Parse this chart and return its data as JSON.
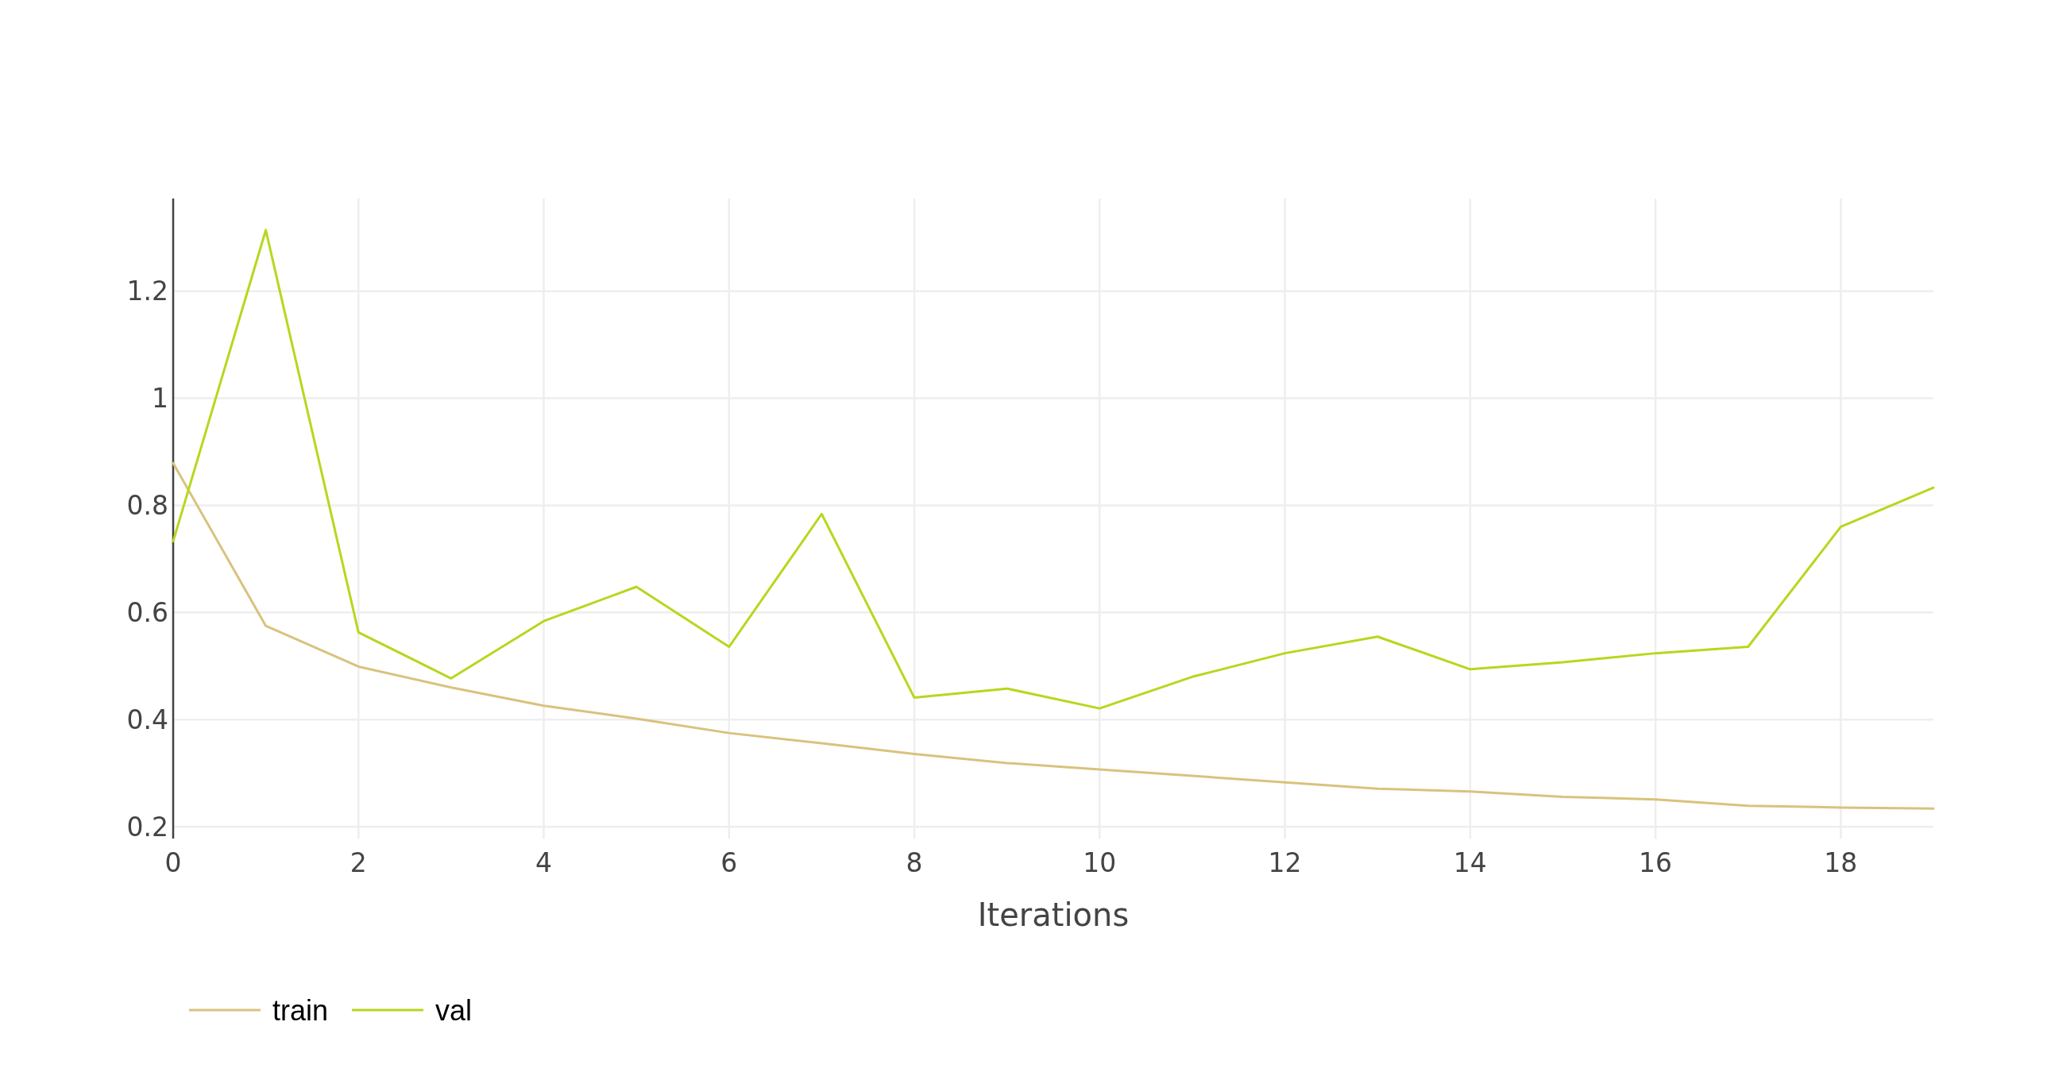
{
  "chart_data": {
    "type": "line",
    "xlabel": "Iterations",
    "x": [
      0,
      1,
      2,
      3,
      4,
      5,
      6,
      7,
      8,
      9,
      10,
      11,
      12,
      13,
      14,
      15,
      16,
      17,
      18,
      19
    ],
    "series": [
      {
        "name": "train",
        "color": "#d9c27e",
        "values": [
          0.879,
          0.575,
          0.499,
          0.46,
          0.426,
          0.402,
          0.375,
          0.356,
          0.336,
          0.319,
          0.307,
          0.295,
          0.283,
          0.271,
          0.266,
          0.256,
          0.251,
          0.239,
          0.236,
          0.234
        ]
      },
      {
        "name": "val",
        "color": "#b5d81e",
        "values": [
          0.733,
          1.314,
          0.563,
          0.477,
          0.584,
          0.648,
          0.536,
          0.784,
          0.441,
          0.458,
          0.421,
          0.48,
          0.524,
          0.555,
          0.494,
          0.507,
          0.524,
          0.536,
          0.76,
          0.833
        ]
      }
    ],
    "xlim": [
      0,
      19
    ],
    "xticks": [
      0,
      2,
      4,
      6,
      8,
      10,
      12,
      14,
      16,
      18
    ],
    "ylim": [
      0.178,
      1.373
    ],
    "yticks": [
      {
        "value": 0.2,
        "label": "0.2"
      },
      {
        "value": 0.4,
        "label": "0.4"
      },
      {
        "value": 0.6,
        "label": "0.6"
      },
      {
        "value": 0.8,
        "label": "0.8"
      },
      {
        "value": 1,
        "label": "1"
      },
      {
        "value": 1.2,
        "label": "1.2"
      }
    ],
    "grid": true,
    "legend": "bottom left",
    "line_style": "solid",
    "marker": "none"
  }
}
